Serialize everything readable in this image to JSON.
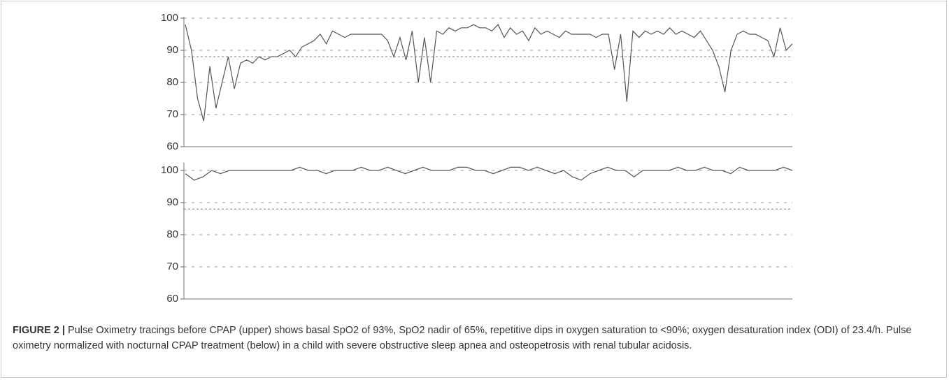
{
  "chart_data": [
    {
      "type": "line",
      "color": "#555555",
      "ylim": [
        60,
        100
      ],
      "yticks": [
        60,
        70,
        80,
        90,
        100
      ],
      "grid": true,
      "reference_lines": [
        88
      ],
      "values": [
        98,
        90,
        75,
        68,
        85,
        72,
        80,
        88,
        78,
        86,
        87,
        86,
        88,
        87,
        88,
        88,
        89,
        90,
        88,
        91,
        92,
        93,
        95,
        92,
        96,
        95,
        94,
        95,
        95,
        95,
        95,
        95,
        95,
        93,
        88,
        94,
        87,
        96,
        80,
        94,
        80,
        96,
        95,
        97,
        96,
        97,
        97,
        98,
        97,
        97,
        96,
        98,
        94,
        97,
        95,
        96,
        93,
        97,
        95,
        96,
        95,
        94,
        96,
        95,
        95,
        95,
        95,
        94,
        95,
        95,
        84,
        95,
        74,
        96,
        94,
        96,
        95,
        96,
        95,
        97,
        95,
        96,
        95,
        94,
        96,
        93,
        90,
        85,
        77,
        90,
        95,
        96,
        95,
        95,
        94,
        93,
        88,
        97,
        90,
        92
      ]
    },
    {
      "type": "line",
      "color": "#555555",
      "ylim": [
        60,
        102
      ],
      "yticks": [
        60,
        70,
        80,
        90,
        100
      ],
      "grid": true,
      "reference_lines": [
        88
      ],
      "values": [
        99,
        97,
        98,
        100,
        99,
        100,
        100,
        100,
        100,
        100,
        100,
        100,
        100,
        101,
        100,
        100,
        99,
        100,
        100,
        100,
        101,
        100,
        100,
        101,
        100,
        99,
        100,
        101,
        100,
        100,
        100,
        101,
        101,
        100,
        100,
        99,
        100,
        101,
        101,
        100,
        101,
        100,
        99,
        100,
        98,
        97,
        99,
        100,
        101,
        100,
        100,
        98,
        100,
        100,
        100,
        100,
        101,
        100,
        100,
        101,
        100,
        100,
        99,
        101,
        100,
        100,
        100,
        100,
        101,
        100
      ]
    }
  ],
  "figure": {
    "label": "FIGURE 2 |",
    "caption": "Pulse Oximetry tracings before CPAP (upper) shows basal SpO2 of 93%, SpO2 nadir of 65%, repetitive dips in oxygen saturation to <90%; oxygen desaturation index (ODI) of 23.4/h. Pulse oximetry normalized with nocturnal CPAP treatment (below) in a child with severe obstructive sleep apnea and osteopetrosis with renal tubular acidosis."
  }
}
